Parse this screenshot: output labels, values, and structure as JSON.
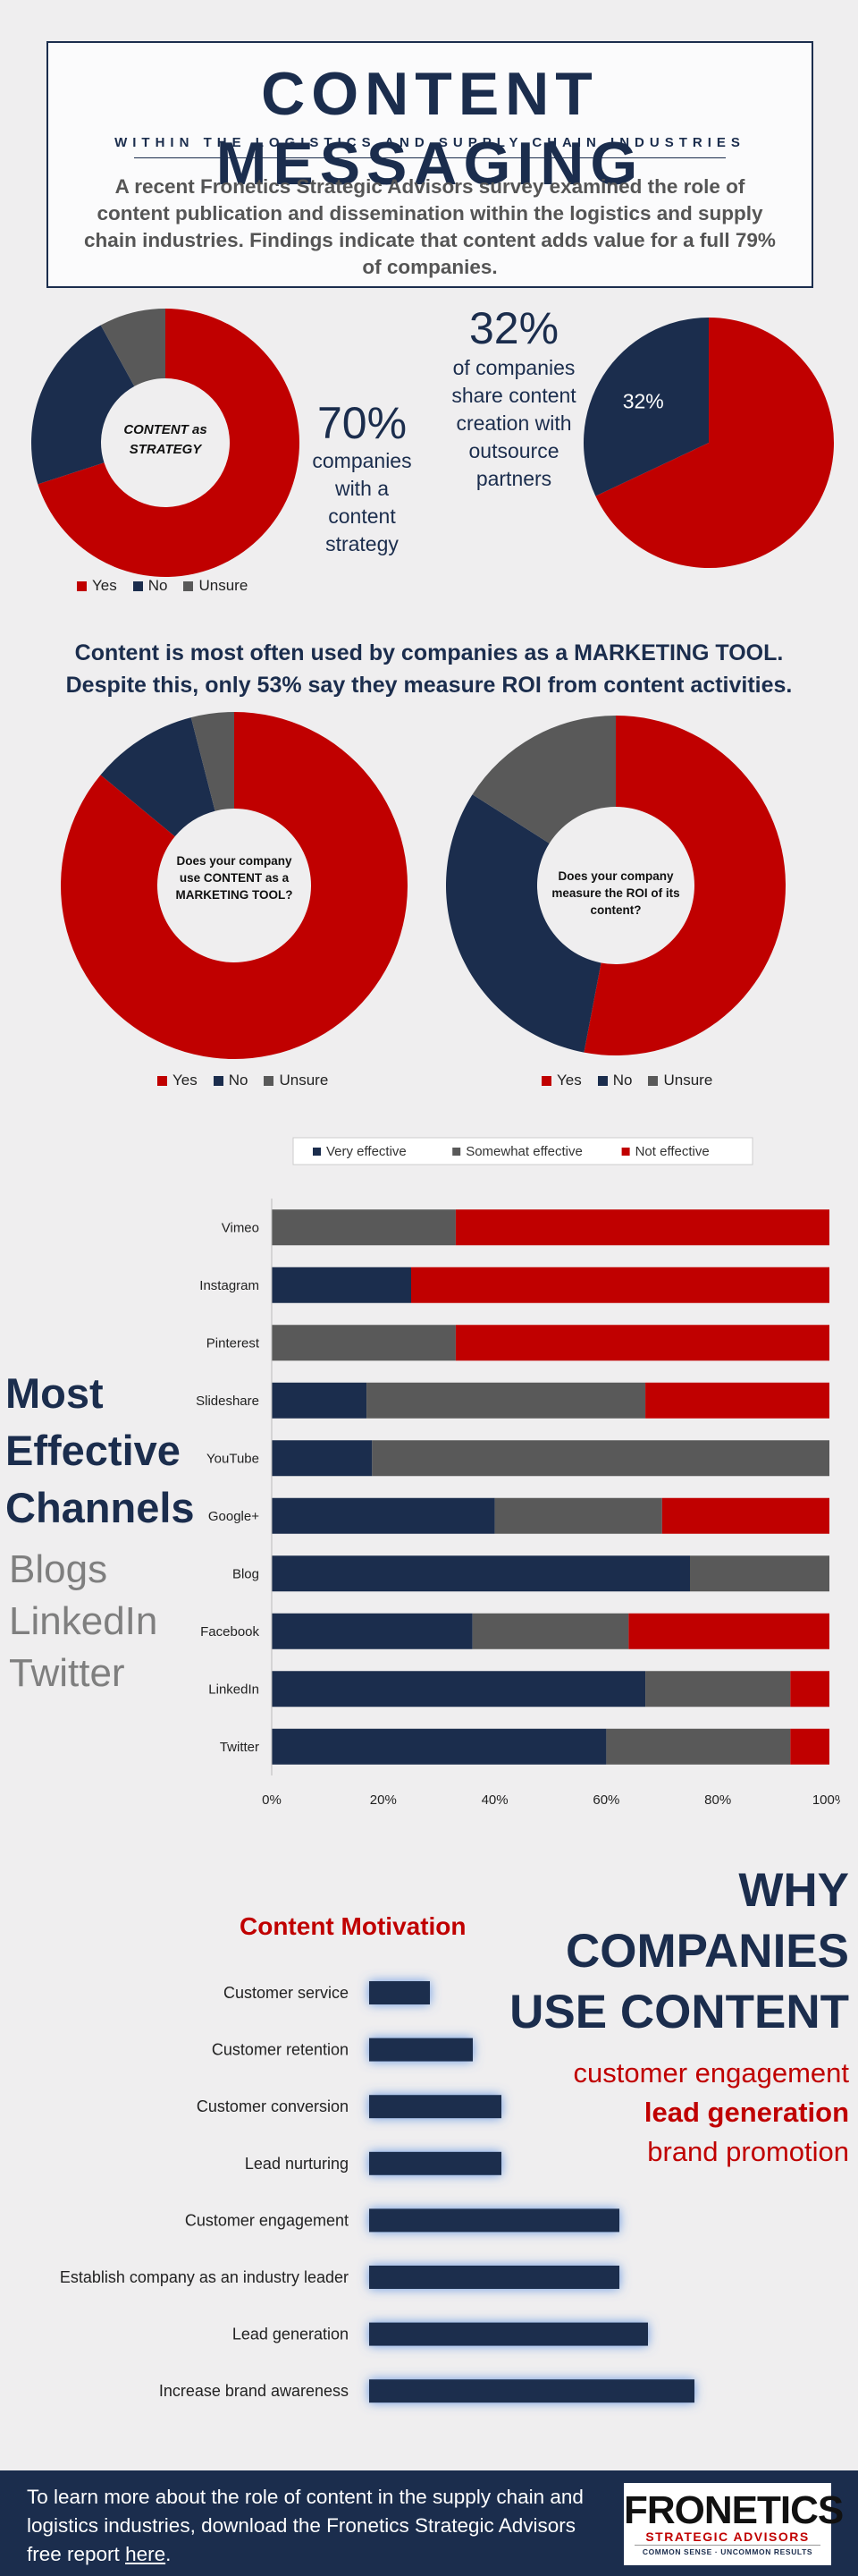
{
  "header": {
    "title": "CONTENT MESSAGING",
    "subtitle": "WITHIN THE LOGISTICS AND SUPPLY CHAIN INDUSTRIES",
    "intro": "A recent Fronetics Strategic Advisors survey examined the role of content publication and dissemination within the logistics and supply chain industries. Findings indicate that content adds value for a full 79% of companies."
  },
  "colors": {
    "navy": "#1b2d4d",
    "red": "#c00000",
    "gray": "#595959",
    "yes": "#c00000",
    "no": "#1b2d4d",
    "unsure": "#595959"
  },
  "stat_strategy": {
    "pct": "70%",
    "desc_lines": [
      "companies",
      "with a",
      "content",
      "strategy"
    ]
  },
  "stat_outsource": {
    "pct": "32%",
    "desc_lines": [
      "of companies",
      "share content",
      "creation with",
      "outsource",
      "partners"
    ]
  },
  "mid_heading": {
    "line1": "Content is most often used by companies as a MARKETING TOOL.",
    "line2": "Despite this, only 53% say they measure ROI from content activities."
  },
  "donut_legend": [
    "Yes",
    "No",
    "Unsure"
  ],
  "bar_legend": [
    "Very effective",
    "Somewhat effective",
    "Not effective"
  ],
  "channels_heading": {
    "lines": [
      "Most",
      "Effective",
      "Channels"
    ],
    "best": [
      "Blogs",
      "LinkedIn",
      "Twitter"
    ]
  },
  "why": {
    "lines": [
      "WHY",
      "COMPANIES",
      "USE CONTENT"
    ],
    "items": [
      "customer engagement",
      "lead generation",
      "brand promotion"
    ]
  },
  "footer": {
    "text": "To learn more about the role of content in the supply chain and logistics industries, download the Fronetics Strategic Advisors free report ",
    "link": "here",
    "end": ".",
    "logo_name": "FRONETICS",
    "logo_sub": "STRATEGIC ADVISORS",
    "logo_tag": "COMMON SENSE · UNCOMMON RESULTS"
  },
  "chart_data": [
    {
      "type": "pie",
      "title": "CONTENT as STRATEGY",
      "categories": [
        "Yes",
        "No",
        "Unsure"
      ],
      "values": [
        70,
        22,
        8
      ],
      "legend_position": "bottom"
    },
    {
      "type": "pie",
      "title": "",
      "categories": [
        "Yes",
        "No"
      ],
      "values": [
        68,
        32
      ],
      "data_labels": [
        "",
        "32%"
      ]
    },
    {
      "type": "pie",
      "title": "Does your company use CONTENT as a MARKETING TOOL?",
      "categories": [
        "Yes",
        "No",
        "Unsure"
      ],
      "values": [
        86,
        10,
        4
      ],
      "legend_position": "bottom"
    },
    {
      "type": "pie",
      "title": "Does your company measure the ROI of its content?",
      "categories": [
        "Yes",
        "No",
        "Unsure"
      ],
      "values": [
        53,
        31,
        16
      ],
      "legend_position": "bottom"
    },
    {
      "type": "bar",
      "orientation": "horizontal",
      "stacked": "percent",
      "categories": [
        "Vimeo",
        "Instagram",
        "Pinterest",
        "Slideshare",
        "YouTube",
        "Google+",
        "Blog",
        "Facebook",
        "LinkedIn",
        "Twitter"
      ],
      "series": [
        {
          "name": "Very effective",
          "values": [
            0,
            25,
            0,
            17,
            18,
            40,
            75,
            36,
            67,
            60
          ]
        },
        {
          "name": "Somewhat effective",
          "values": [
            33,
            0,
            33,
            50,
            82,
            30,
            25,
            28,
            26,
            33
          ]
        },
        {
          "name": "Not effective",
          "values": [
            67,
            75,
            67,
            33,
            0,
            30,
            0,
            36,
            7,
            7
          ]
        }
      ],
      "xlim": [
        0,
        100
      ],
      "xticks": [
        "0%",
        "20%",
        "40%",
        "60%",
        "80%",
        "100%"
      ],
      "legend_position": "top"
    },
    {
      "type": "bar",
      "orientation": "horizontal",
      "title": "Content Motivation",
      "categories": [
        "Customer service",
        "Customer retention",
        "Customer conversion",
        "Lead nurturing",
        "Customer engagement",
        "Establish company as an industry leader",
        "Lead generation",
        "Increase brand awareness"
      ],
      "values": [
        17,
        29,
        37,
        37,
        70,
        70,
        78,
        91
      ],
      "xlim": [
        0,
        100
      ]
    }
  ]
}
